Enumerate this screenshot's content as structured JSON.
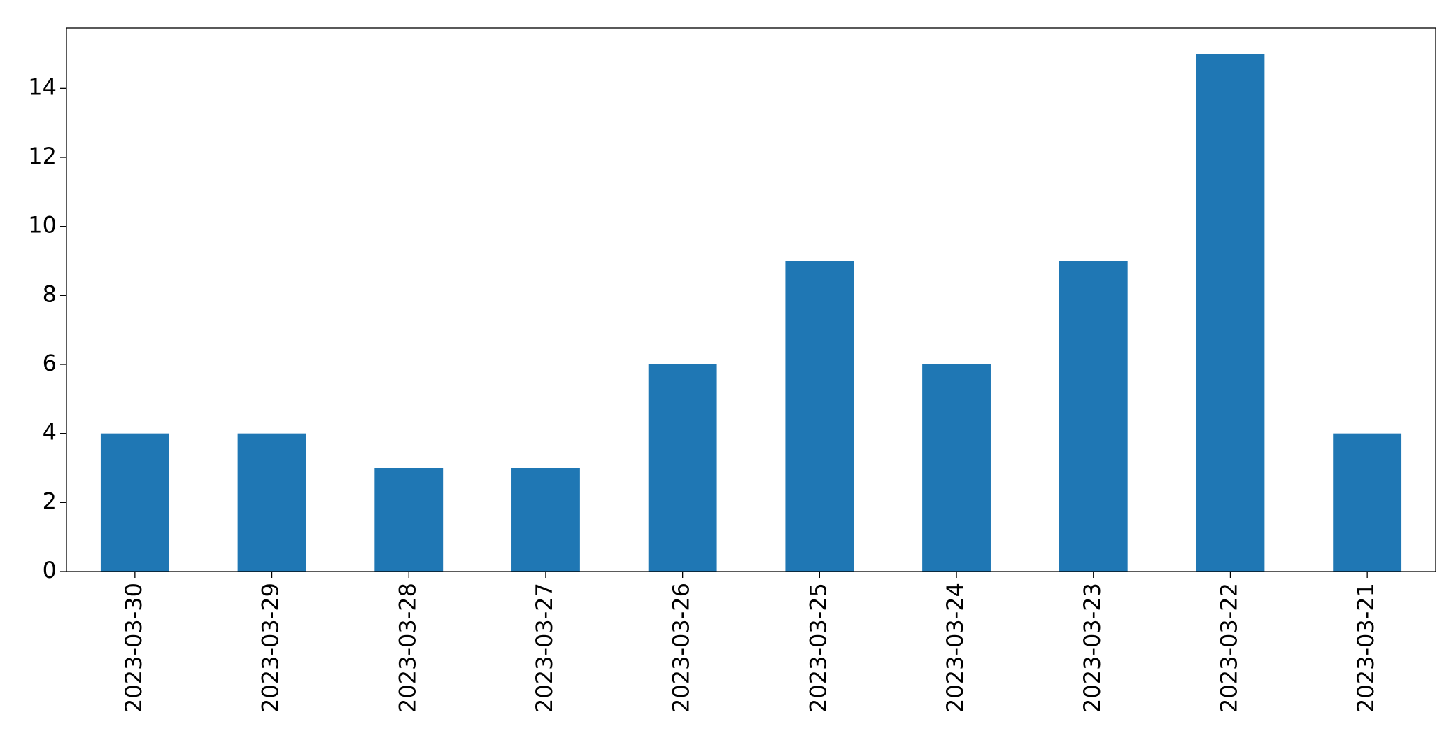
{
  "chart_data": {
    "type": "bar",
    "categories": [
      "2023-03-30",
      "2023-03-29",
      "2023-03-28",
      "2023-03-27",
      "2023-03-26",
      "2023-03-25",
      "2023-03-24",
      "2023-03-23",
      "2023-03-22",
      "2023-03-21"
    ],
    "values": [
      4,
      4,
      3,
      3,
      6,
      9,
      6,
      9,
      15,
      4
    ],
    "color": "#1f77b4",
    "ylim": [
      0,
      15.75
    ],
    "yticks": [
      0,
      2,
      4,
      6,
      8,
      10,
      12,
      14
    ],
    "grid": false
  }
}
